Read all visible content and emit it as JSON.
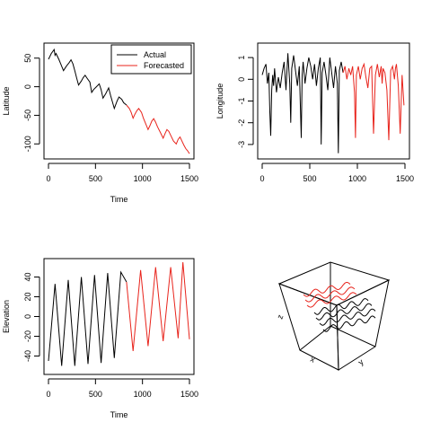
{
  "colors": {
    "actual": "#000000",
    "forecast": "#e8231b"
  },
  "chart_data": [
    {
      "type": "line",
      "xlabel": "Time",
      "ylabel": "Latitude",
      "xlim": [
        0,
        1500
      ],
      "ylim": [
        -120,
        70
      ],
      "xticks": [
        0,
        500,
        1000,
        1500
      ],
      "yticks": [
        50,
        0,
        -50,
        -100
      ],
      "legend": {
        "placement": "top-right",
        "entries": [
          "Actual",
          "Forecasted"
        ]
      },
      "series": [
        {
          "name": "Actual",
          "x": [
            0,
            30,
            60,
            70,
            80,
            110,
            130,
            160,
            175,
            190,
            220,
            240,
            260,
            280,
            300,
            320,
            350,
            370,
            390,
            410,
            440,
            460,
            480,
            510,
            540,
            560,
            580,
            610,
            640,
            660,
            700,
            730,
            750,
            780,
            800,
            830
          ],
          "y": [
            48,
            58,
            65,
            55,
            58,
            48,
            40,
            28,
            32,
            36,
            42,
            47,
            40,
            28,
            15,
            3,
            10,
            16,
            20,
            15,
            8,
            -10,
            -5,
            0,
            5,
            -5,
            -20,
            -12,
            -2,
            -15,
            -38,
            -25,
            -18,
            -22,
            -28,
            -32
          ]
        },
        {
          "name": "Forecasted",
          "x": [
            830,
            860,
            880,
            900,
            920,
            940,
            960,
            990,
            1010,
            1030,
            1060,
            1080,
            1100,
            1120,
            1140,
            1160,
            1190,
            1220,
            1240,
            1260,
            1280,
            1300,
            1330,
            1360,
            1380,
            1400,
            1420,
            1440,
            1460,
            1480,
            1500
          ],
          "y": [
            -32,
            -38,
            -45,
            -55,
            -48,
            -42,
            -38,
            -45,
            -55,
            -63,
            -75,
            -68,
            -60,
            -56,
            -62,
            -70,
            -80,
            -90,
            -82,
            -75,
            -78,
            -85,
            -95,
            -100,
            -92,
            -88,
            -95,
            -102,
            -108,
            -112,
            -117
          ]
        }
      ]
    },
    {
      "type": "line",
      "xlabel": "",
      "ylabel": "Longitude",
      "xlim": [
        0,
        1500
      ],
      "ylim": [
        -3.5,
        1.5
      ],
      "xticks": [
        0,
        500,
        1000,
        1500
      ],
      "yticks": [
        1,
        0,
        -1,
        -2,
        -3
      ],
      "series": [
        {
          "name": "Actual",
          "x": [
            0,
            20,
            40,
            55,
            70,
            80,
            90,
            100,
            110,
            120,
            130,
            150,
            170,
            190,
            210,
            230,
            250,
            270,
            290,
            300,
            310,
            330,
            350,
            370,
            390,
            410,
            420,
            430,
            450,
            470,
            490,
            510,
            530,
            550,
            570,
            590,
            610,
            620,
            630,
            650,
            670,
            690,
            710,
            730,
            750,
            770,
            790,
            800,
            810,
            830,
            850
          ],
          "y": [
            0.2,
            0.5,
            0.7,
            -0.2,
            0.3,
            -1.5,
            -2.6,
            -0.5,
            0.2,
            -0.3,
            0.5,
            -0.6,
            0.1,
            -0.4,
            0.3,
            0.8,
            -0.5,
            1.2,
            -0.2,
            -2.0,
            0.5,
            1.1,
            0.4,
            -0.3,
            0.6,
            -2.7,
            0.2,
            0.8,
            -0.2,
            0.5,
            1.0,
            0.6,
            0.0,
            0.7,
            -0.3,
            0.5,
            1.0,
            -3.0,
            0.3,
            0.8,
            0.2,
            -0.5,
            1.0,
            0.3,
            -0.4,
            0.6,
            -0.2,
            -3.4,
            0.4,
            0.8,
            0.3
          ]
        },
        {
          "name": "Forecasted",
          "x": [
            850,
            870,
            890,
            910,
            930,
            950,
            970,
            980,
            990,
            1010,
            1030,
            1050,
            1070,
            1090,
            1110,
            1130,
            1150,
            1170,
            1190,
            1210,
            1230,
            1250,
            1260,
            1270,
            1290,
            1310,
            1330,
            1350,
            1370,
            1390,
            1400,
            1410,
            1430,
            1450,
            1470,
            1490
          ],
          "y": [
            0.3,
            0.6,
            0.0,
            0.5,
            0.2,
            0.6,
            -0.6,
            -2.7,
            0.2,
            0.6,
            0.0,
            0.5,
            0.7,
            0.1,
            -0.4,
            0.5,
            0.6,
            -2.5,
            0.2,
            0.7,
            0.1,
            0.6,
            -0.2,
            0.5,
            0.3,
            -0.5,
            -2.8,
            0.4,
            0.6,
            0.0,
            0.5,
            0.7,
            -0.3,
            -2.5,
            0.2,
            -1.2
          ]
        }
      ]
    },
    {
      "type": "line",
      "xlabel": "Time",
      "ylabel": "Elevation",
      "xlim": [
        0,
        1500
      ],
      "ylim": [
        -55,
        55
      ],
      "xticks": [
        0,
        500,
        1000,
        1500
      ],
      "yticks": [
        40,
        20,
        0,
        -20,
        -40
      ],
      "series": [
        {
          "name": "Actual",
          "x": [
            0,
            70,
            140,
            210,
            280,
            350,
            420,
            490,
            560,
            630,
            700,
            770,
            830
          ],
          "y": [
            -45,
            33,
            -50,
            37,
            -50,
            40,
            -48,
            42,
            -47,
            44,
            -42,
            45,
            35
          ]
        },
        {
          "name": "Forecasted",
          "x": [
            830,
            900,
            980,
            1060,
            1140,
            1220,
            1300,
            1380,
            1430,
            1500
          ],
          "y": [
            35,
            -35,
            47,
            -30,
            50,
            -25,
            50,
            -22,
            55,
            -23
          ]
        }
      ]
    }
  ],
  "panel4": {
    "zlabel": "z",
    "xlabel": "x",
    "ylabel": "y"
  }
}
